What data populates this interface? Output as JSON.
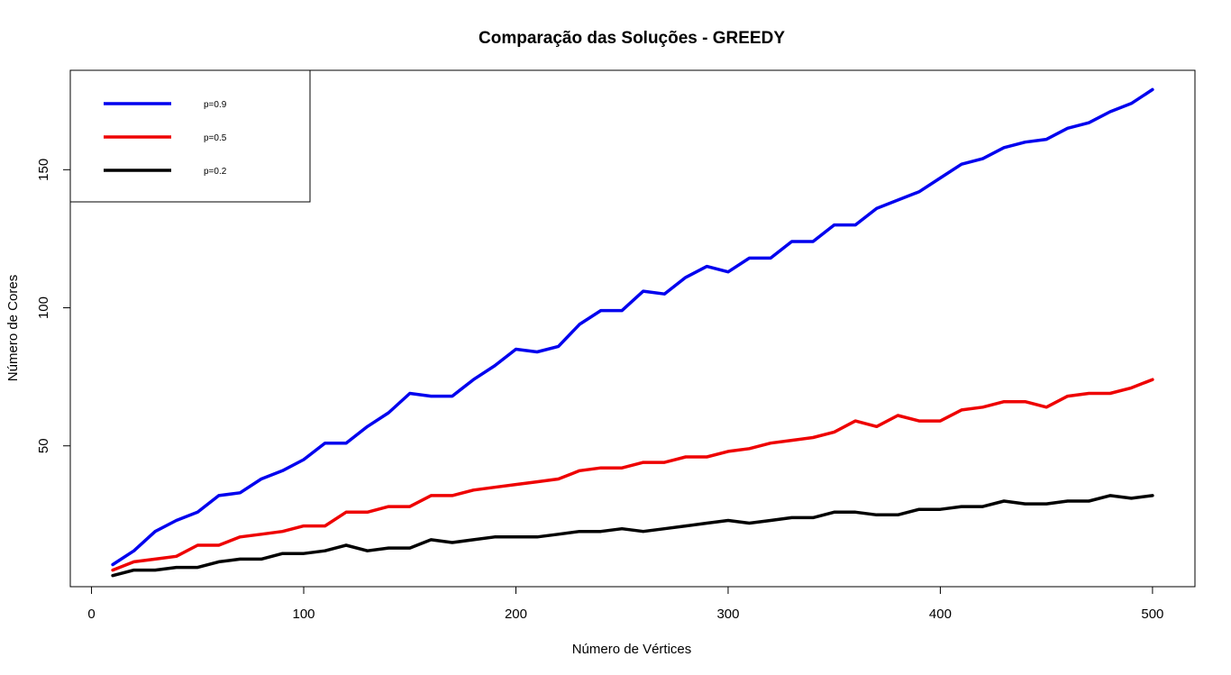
{
  "chart_data": {
    "type": "line",
    "title": "Comparação das Soluções - GREEDY",
    "xlabel": "Número de Vértices",
    "ylabel": "Número de Cores",
    "xlim": [
      -10,
      520
    ],
    "ylim": [
      -1,
      186
    ],
    "xticks": [
      0,
      100,
      200,
      300,
      400,
      500
    ],
    "yticks": [
      50,
      100,
      150
    ],
    "grid": false,
    "legend_position": "top-left",
    "x": [
      10,
      20,
      30,
      40,
      50,
      60,
      70,
      80,
      90,
      100,
      110,
      120,
      130,
      140,
      150,
      160,
      170,
      180,
      190,
      200,
      210,
      220,
      230,
      240,
      250,
      260,
      270,
      280,
      290,
      300,
      310,
      320,
      330,
      340,
      350,
      360,
      370,
      380,
      390,
      400,
      410,
      420,
      430,
      440,
      450,
      460,
      470,
      480,
      490,
      500
    ],
    "series": [
      {
        "name": "p=0.9",
        "color": "#0000ee",
        "values": [
          7,
          12,
          19,
          23,
          26,
          32,
          33,
          38,
          41,
          45,
          51,
          51,
          57,
          62,
          69,
          68,
          68,
          74,
          79,
          85,
          84,
          86,
          94,
          99,
          99,
          106,
          105,
          111,
          115,
          113,
          118,
          118,
          124,
          124,
          130,
          130,
          136,
          139,
          142,
          147,
          152,
          154,
          158,
          160,
          161,
          165,
          167,
          171,
          174,
          179
        ]
      },
      {
        "name": "p=0.5",
        "color": "#ee0000",
        "values": [
          5,
          8,
          9,
          10,
          14,
          14,
          17,
          18,
          19,
          21,
          21,
          26,
          26,
          28,
          28,
          32,
          32,
          34,
          35,
          36,
          37,
          38,
          41,
          42,
          42,
          44,
          44,
          46,
          46,
          48,
          49,
          51,
          52,
          53,
          55,
          59,
          57,
          61,
          59,
          59,
          63,
          64,
          66,
          66,
          64,
          68,
          69,
          69,
          71,
          74
        ]
      },
      {
        "name": "p=0.2",
        "color": "#000000",
        "values": [
          3,
          5,
          5,
          6,
          6,
          8,
          9,
          9,
          11,
          11,
          12,
          14,
          12,
          13,
          13,
          16,
          15,
          16,
          17,
          17,
          17,
          18,
          19,
          19,
          20,
          19,
          20,
          21,
          22,
          23,
          22,
          23,
          24,
          24,
          26,
          26,
          25,
          25,
          27,
          27,
          28,
          28,
          30,
          29,
          29,
          30,
          30,
          32,
          31,
          32
        ]
      }
    ]
  }
}
